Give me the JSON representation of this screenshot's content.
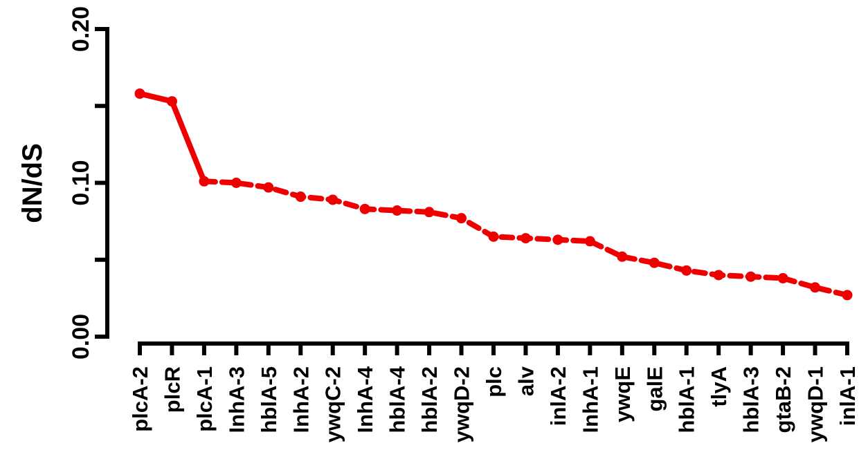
{
  "chart_data": {
    "type": "line",
    "title": "",
    "xlabel": "",
    "ylabel": "dN/dS",
    "ylim": [
      0.0,
      0.2
    ],
    "yticks": [
      0.0,
      0.05,
      0.1,
      0.15,
      0.2
    ],
    "ytick_labels": [
      "0.00",
      "",
      "0.10",
      "",
      "0.20"
    ],
    "categories": [
      "plcA-2",
      "plcR",
      "plcA-1",
      "InhA-3",
      "hblA-5",
      "InhA-2",
      "ywqC-2",
      "InhA-4",
      "hblA-4",
      "hblA-2",
      "ywqD-2",
      "plc",
      "alv",
      "inlA-2",
      "InhA-1",
      "ywqE",
      "galE",
      "hblA-1",
      "tlyA",
      "hblA-3",
      "gtaB-2",
      "ywqD-1",
      "inlA-1"
    ],
    "series": [
      {
        "color": "#ee0000",
        "values": [
          0.158,
          0.153,
          0.101,
          0.1,
          0.097,
          0.091,
          0.089,
          0.083,
          0.082,
          0.081,
          0.077,
          0.065,
          0.064,
          0.063,
          0.062,
          0.052,
          0.048,
          0.043,
          0.04,
          0.039,
          0.038,
          0.032,
          0.027
        ]
      }
    ],
    "grid": false,
    "legend": "none"
  }
}
